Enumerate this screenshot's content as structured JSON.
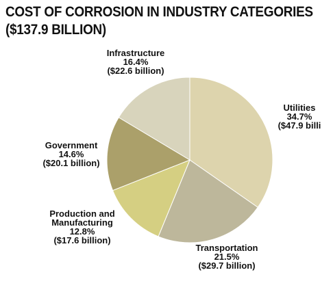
{
  "title_lines": [
    "COST OF CORROSION IN INDUSTRY CATEGORIES",
    "($137.9 BILLION)"
  ],
  "chart_data": {
    "type": "pie",
    "title": "COST OF CORROSION IN INDUSTRY CATEGORIES ($137.9 BILLION)",
    "total": "$137.9 billion",
    "slices": [
      {
        "category": "Utilities",
        "percent": 34.7,
        "value_billion": 47.9,
        "value_label": "($47.9 billi",
        "color": "#ddd4ad"
      },
      {
        "category": "Transportation",
        "percent": 21.5,
        "value_billion": 29.7,
        "value_label": "($29.7 billion)",
        "color": "#bdb79b"
      },
      {
        "category": "Production and Manufacturing",
        "percent": 12.8,
        "value_billion": 17.6,
        "value_label": "($17.6 billion)",
        "color": "#d5cf82"
      },
      {
        "category": "Government",
        "percent": 14.6,
        "value_billion": 20.1,
        "value_label": "($20.1 billion)",
        "color": "#aba06a"
      },
      {
        "category": "Infrastructure",
        "percent": 16.4,
        "value_billion": 22.6,
        "value_label": "($22.6 billion)",
        "color": "#d8d4bc"
      }
    ],
    "labels": [
      {
        "lines": [
          "Utilities",
          "34.7%",
          "($47.9 billi"
        ]
      },
      {
        "lines": [
          "Transportation",
          "21.5%",
          "($29.7 billion)"
        ]
      },
      {
        "lines": [
          "Production and",
          "Manufacturing",
          "12.8%",
          "($17.6 billion)"
        ]
      },
      {
        "lines": [
          "Government",
          "14.6%",
          "($20.1 billion)"
        ]
      },
      {
        "lines": [
          "Infrastructure",
          "16.4%",
          "($22.6 billion)"
        ]
      }
    ]
  }
}
